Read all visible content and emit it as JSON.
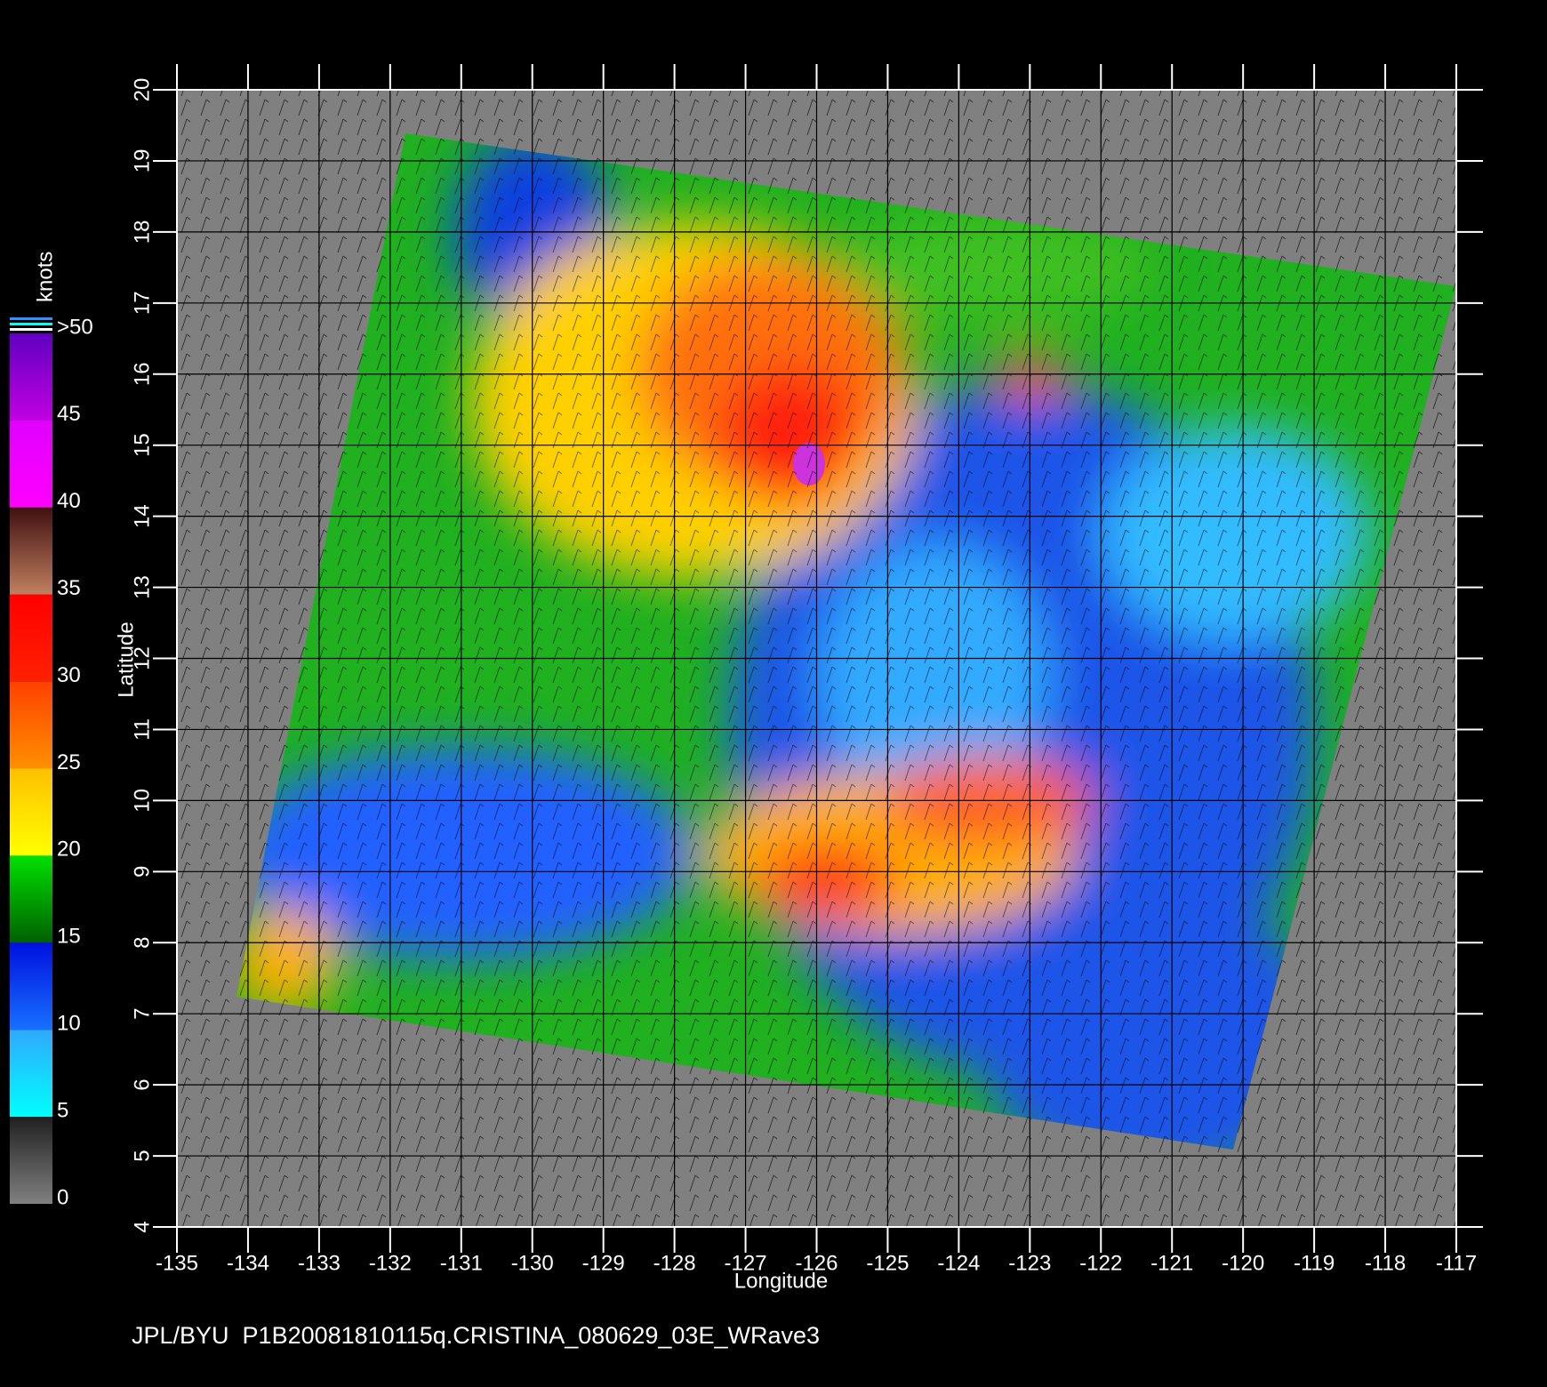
{
  "chart_data": {
    "type": "map",
    "x_label": "Longitude",
    "y_label": "Latitude",
    "xlim": [
      -135,
      -117
    ],
    "xticks": [
      -135,
      -134,
      -133,
      -132,
      -131,
      -130,
      -129,
      -128,
      -127,
      -126,
      -125,
      -124,
      -123,
      -122,
      -121,
      -120,
      -119,
      -118,
      -117
    ],
    "ylim": [
      4,
      20
    ],
    "yticks": [
      4,
      5,
      6,
      7,
      8,
      9,
      10,
      11,
      12,
      13,
      14,
      15,
      16,
      17,
      18,
      19,
      20
    ],
    "grid": true,
    "colorbar": {
      "label": "knots",
      "ticks": [
        0,
        5,
        10,
        15,
        20,
        25,
        30,
        35,
        40,
        45,
        {
          "value": 50,
          "label": ">50"
        }
      ],
      "colors": [
        [
          "#808080",
          "#202020"
        ],
        [
          "#00ffff",
          "#30a8ff"
        ],
        [
          "#1870ff",
          "#0010e0"
        ],
        [
          "#006000",
          "#00e000"
        ],
        [
          "#ffff00",
          "#ffc000"
        ],
        [
          "#ff9000",
          "#ff4000"
        ],
        [
          "#ff2000",
          "#ff0000"
        ],
        [
          "#c08060",
          "#401010"
        ],
        [
          "#ff00ff",
          "#e000ff"
        ],
        [
          "#c000e0",
          "#6000c0"
        ]
      ]
    },
    "footer": "JPL/BYU  P1B20081810115q.CRISTINA_080629_03E_WRave3"
  }
}
